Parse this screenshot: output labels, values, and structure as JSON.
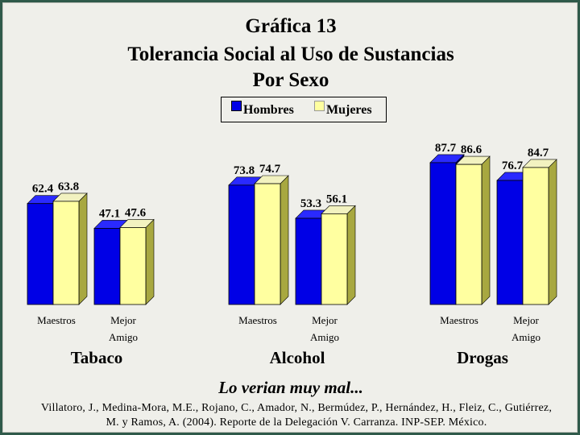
{
  "title_lines": [
    "Gráfica 13",
    "Tolerancia Social al Uso de Sustancias",
    "Por Sexo"
  ],
  "subtitle": "Lo verian muy mal...",
  "citation": "Villatoro, J., Medina-Mora, M.E., Rojano, C., Amador, N., Bermúdez, P., Hernández, H., Fleiz, C., Gutiérrez, M. y Ramos, A. (2004). Reporte de la Delegación V. Carranza. INP-SEP. México.",
  "colors": {
    "Hombres": "#0000e6",
    "Mujeres": "#ffffa0",
    "background": "#efefea",
    "border": "#2f5a4a"
  },
  "chart_data": {
    "type": "bar",
    "title": "Tolerancia Social al Uso de Sustancias Por Sexo",
    "legend_position": "top-center",
    "groups": [
      {
        "label": "Tabaco",
        "categories": [
          "Maestros",
          "Mejor Amigo"
        ],
        "series": [
          {
            "name": "Hombres",
            "values": [
              62.4,
              47.1
            ]
          },
          {
            "name": "Mujeres",
            "values": [
              63.8,
              47.6
            ]
          }
        ]
      },
      {
        "label": "Alcohol",
        "categories": [
          "Maestros",
          "Mejor Amigo"
        ],
        "series": [
          {
            "name": "Hombres",
            "values": [
              73.8,
              53.3
            ]
          },
          {
            "name": "Mujeres",
            "values": [
              74.7,
              56.1
            ]
          }
        ]
      },
      {
        "label": "Drogas",
        "categories": [
          "Maestros",
          "Mejor Amigo"
        ],
        "series": [
          {
            "name": "Hombres",
            "values": [
              87.7,
              76.7
            ]
          },
          {
            "name": "Mujeres",
            "values": [
              86.6,
              84.7
            ]
          }
        ]
      }
    ],
    "ylim": [
      0,
      100
    ],
    "grid": false
  }
}
